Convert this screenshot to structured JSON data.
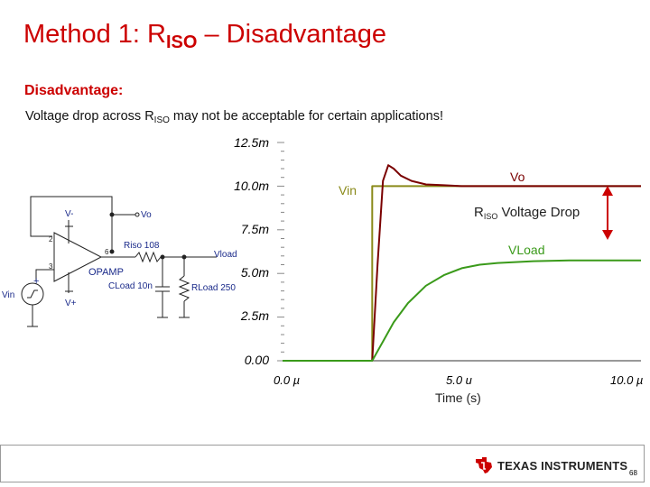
{
  "slide": {
    "title_pre": "Method 1: R",
    "title_sub": "ISO",
    "title_post": " – Disadvantage",
    "subheading": "Disadvantage:",
    "body_pre": "Voltage drop across R",
    "body_sub": "ISO",
    "body_post": " may not be acceptable for certain applications!",
    "page_number": "68"
  },
  "schematic": {
    "vminus": "V-",
    "vplus": "V+",
    "vo": "Vo",
    "riso": "Riso 108",
    "vload": "Vload",
    "opamp": "OPAMP",
    "cload": "CLoad 10n",
    "rload": "RLoad 250",
    "vin": "Vin",
    "pin2": "2",
    "pin3": "3",
    "pin6": "6",
    "plus_sign": "+"
  },
  "chart_data": {
    "type": "line",
    "xlabel": "Time (s)",
    "x_ticks": [
      "0.0 µ",
      "5.0 u",
      "10.0 µ"
    ],
    "y_ticks": [
      "12.5m",
      "10.0m",
      "7.5m",
      "5.0m",
      "2.5m",
      "0.00"
    ],
    "xlim_us": [
      0,
      10
    ],
    "ylim_m": [
      0,
      12.5
    ],
    "series": [
      {
        "name": "Vin",
        "color": "#8a8a1a",
        "x": [
          0,
          2.5,
          2.5,
          10
        ],
        "y": [
          0,
          0,
          10,
          10
        ]
      },
      {
        "name": "Vo",
        "color": "#7a0000",
        "x": [
          0,
          2.5,
          2.65,
          2.8,
          2.95,
          3.1,
          3.3,
          3.6,
          4.0,
          4.5,
          5.0,
          10
        ],
        "y": [
          0,
          0,
          5.5,
          10.3,
          11.2,
          11.0,
          10.6,
          10.3,
          10.1,
          10.05,
          10.0,
          10.0
        ]
      },
      {
        "name": "VLoad",
        "color": "#3a9a1a",
        "x": [
          0,
          2.5,
          2.8,
          3.1,
          3.5,
          4.0,
          4.5,
          5.0,
          5.5,
          6.0,
          7.0,
          8.0,
          10
        ],
        "y": [
          0,
          0,
          1.1,
          2.2,
          3.3,
          4.3,
          4.9,
          5.3,
          5.5,
          5.6,
          5.7,
          5.75,
          5.75
        ]
      }
    ],
    "annotations": {
      "vin_label": "Vin",
      "vo_label": "Vo",
      "vload_label": "VLoad",
      "drop_pre": "R",
      "drop_sub": "ISO",
      "drop_post": " Voltage Drop"
    }
  },
  "footer": {
    "brand": "TEXAS INSTRUMENTS"
  },
  "colors": {
    "title": "#cc0000",
    "arrow": "#cc0000",
    "schematic_text": "#1a2a8a"
  }
}
